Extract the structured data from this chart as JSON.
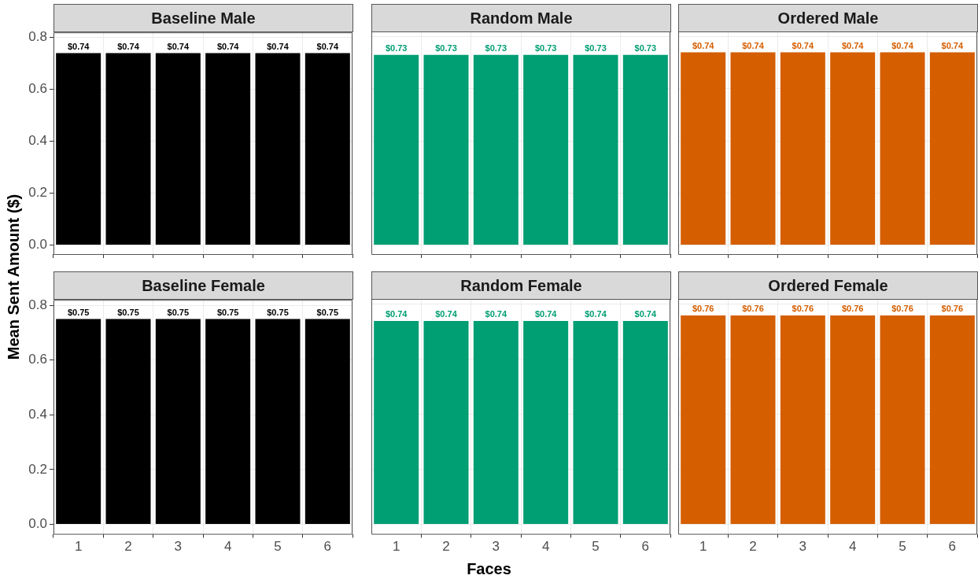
{
  "chart_data": [
    {
      "type": "bar",
      "title": "Baseline Male",
      "ylabel": "Mean Sent Amount ($)",
      "categories": [
        "1",
        "2",
        "3",
        "4",
        "5",
        "6"
      ],
      "series": [
        {
          "color": "#000000",
          "values": [
            0.74,
            0.74,
            0.74,
            0.74,
            0.74,
            0.74
          ],
          "value_labels": [
            "$0.74",
            "$0.74",
            "$0.74",
            "$0.74",
            "$0.74",
            "$0.74"
          ]
        }
      ],
      "ylim": [
        -0.035,
        0.82
      ],
      "yticks": [
        {
          "value": 0,
          "label": "0.0"
        },
        0.2,
        0.4,
        0.6,
        0.8
      ],
      "grid": true,
      "tick_labels": "y"
    },
    {
      "type": "bar",
      "title": "Random Male",
      "categories": [
        "1",
        "2",
        "3",
        "4",
        "5",
        "6"
      ],
      "series": [
        {
          "color": "#009e73",
          "values": [
            0.73,
            0.73,
            0.73,
            0.73,
            0.73,
            0.73
          ],
          "value_labels": [
            "$0.73",
            "$0.73",
            "$0.73",
            "$0.73",
            "$0.73",
            "$0.73"
          ]
        }
      ],
      "ylim": [
        -0.035,
        0.82
      ],
      "yticks": [
        0,
        0.2,
        0.4,
        0.6,
        0.8
      ],
      "grid": true,
      "tick_labels": false
    },
    {
      "type": "bar",
      "title": "Ordered Male",
      "categories": [
        "1",
        "2",
        "3",
        "4",
        "5",
        "6"
      ],
      "series": [
        {
          "color": "#d55e00",
          "values": [
            0.74,
            0.74,
            0.74,
            0.74,
            0.74,
            0.74
          ],
          "value_labels": [
            "$0.74",
            "$0.74",
            "$0.74",
            "$0.74",
            "$0.74",
            "$0.74"
          ]
        }
      ],
      "ylim": [
        -0.035,
        0.82
      ],
      "yticks": [
        0,
        0.2,
        0.4,
        0.6,
        0.8
      ],
      "grid": true,
      "tick_labels": false
    },
    {
      "type": "bar",
      "title": "Baseline Female",
      "categories": [
        "1",
        "2",
        "3",
        "4",
        "5",
        "6"
      ],
      "series": [
        {
          "color": "#000000",
          "values": [
            0.75,
            0.75,
            0.75,
            0.75,
            0.75,
            0.75
          ],
          "value_labels": [
            "$0.75",
            "$0.75",
            "$0.75",
            "$0.75",
            "$0.75",
            "$0.75"
          ]
        }
      ],
      "ylim": [
        -0.035,
        0.82
      ],
      "yticks": [
        {
          "value": 0,
          "label": "0.0"
        },
        0.2,
        0.4,
        0.6,
        0.8
      ],
      "grid": true
    },
    {
      "type": "bar",
      "title": "Random Female",
      "xlabel": "Faces",
      "categories": [
        "1",
        "2",
        "3",
        "4",
        "5",
        "6"
      ],
      "series": [
        {
          "color": "#009e73",
          "values": [
            0.74,
            0.74,
            0.74,
            0.74,
            0.74,
            0.74
          ],
          "value_labels": [
            "$0.74",
            "$0.74",
            "$0.74",
            "$0.74",
            "$0.74",
            "$0.74"
          ]
        }
      ],
      "ylim": [
        -0.035,
        0.82
      ],
      "yticks": [
        0,
        0.2,
        0.4,
        0.6,
        0.8
      ],
      "grid": true,
      "tick_labels": "x"
    },
    {
      "type": "bar",
      "title": "Ordered Female",
      "categories": [
        "1",
        "2",
        "3",
        "4",
        "5",
        "6"
      ],
      "series": [
        {
          "color": "#d55e00",
          "values": [
            0.76,
            0.76,
            0.76,
            0.76,
            0.76,
            0.76
          ],
          "value_labels": [
            "$0.76",
            "$0.76",
            "$0.76",
            "$0.76",
            "$0.76",
            "$0.76"
          ]
        }
      ],
      "ylim": [
        -0.035,
        0.82
      ],
      "yticks": [
        0,
        0.2,
        0.4,
        0.6,
        0.8
      ],
      "grid": true,
      "tick_labels": "x"
    }
  ]
}
